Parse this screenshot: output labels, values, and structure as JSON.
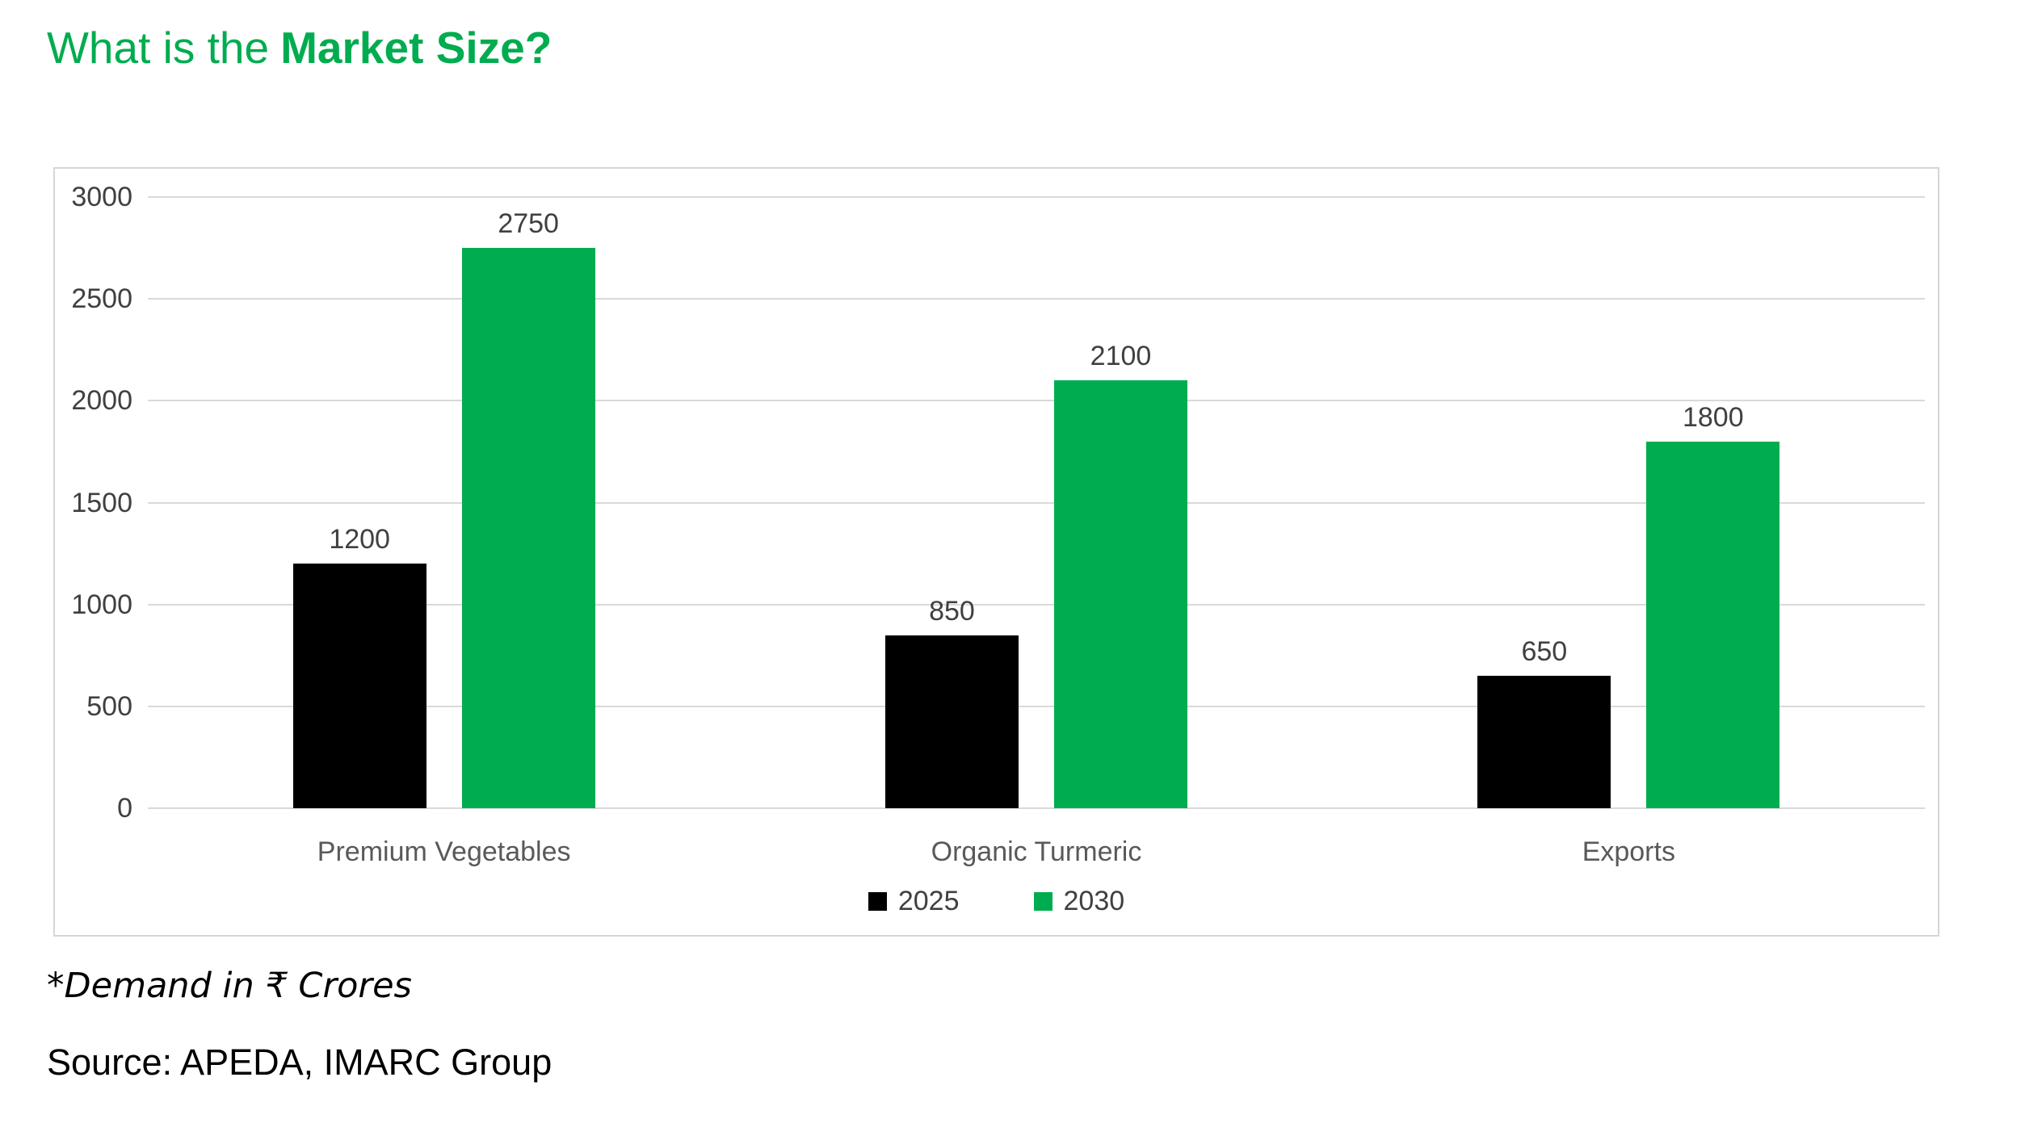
{
  "page": {
    "title": {
      "regular": "What is the",
      "bold": "Market Size?",
      "color": "#00AC50"
    },
    "footnote": "*Demand in ₹ Crores",
    "source": "Source: APEDA, IMARC Group",
    "background": "#FFFFFF"
  },
  "chart_data": {
    "type": "bar",
    "title": "",
    "categories": [
      "Premium Vegetables",
      "Organic Turmeric",
      "Exports"
    ],
    "series": [
      {
        "name": "2025",
        "color": "#000000",
        "values": [
          1200,
          850,
          650
        ]
      },
      {
        "name": "2030",
        "color": "#00AC50",
        "values": [
          2750,
          2100,
          1800
        ]
      }
    ],
    "ylim": [
      0,
      3000
    ],
    "yticks": [
      0,
      500,
      1000,
      1500,
      2000,
      2500,
      3000
    ],
    "grid": true,
    "legend_position": "bottom",
    "value_labels": true,
    "colors": {
      "gridline": "#D9D9D9",
      "border": "#D6D6D6",
      "tick_label": "#404040",
      "value_label": "#404040",
      "category_label": "#595959",
      "legend_label": "#404040"
    }
  }
}
